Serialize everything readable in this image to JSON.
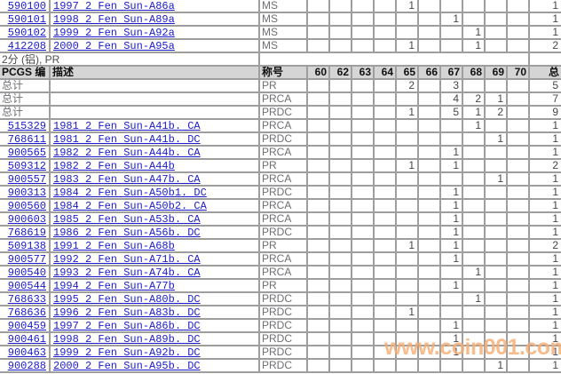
{
  "colors": {
    "link_blue": "#1a1acd",
    "header_bg": "#d5d5d5",
    "grid_line": "#9e9e9e",
    "count_text": "#45454d",
    "muted_text": "#6e6e74",
    "watermark_orange": "#f6ad74"
  },
  "watermark": {
    "text": "www.coin001.com"
  },
  "section": {
    "label": "2分 (铝), PR"
  },
  "table": {
    "header": {
      "pcgs": "PCGS 编",
      "description": "描述",
      "designation": "称号",
      "total": "总"
    },
    "grade_columns": [
      "60",
      "62",
      "63",
      "64",
      "65",
      "66",
      "67",
      "68",
      "69",
      "70"
    ],
    "totals_label": "总计",
    "ms_rows": [
      {
        "pcgs": "590100",
        "description": "1997 2 Fen Sun-A86a",
        "designation": "MS",
        "grades": {
          "65": 1
        },
        "total": 1
      },
      {
        "pcgs": "590101",
        "description": "1998 2 Fen Sun-A89a",
        "designation": "MS",
        "grades": {
          "67": 1
        },
        "total": 1
      },
      {
        "pcgs": "590102",
        "description": "1999 2 Fen Sun-A92a",
        "designation": "MS",
        "grades": {
          "68": 1
        },
        "total": 1
      },
      {
        "pcgs": "412208",
        "description": "2000 2 Fen Sun-A95a",
        "designation": "MS",
        "grades": {
          "65": 1,
          "68": 1
        },
        "total": 2
      }
    ],
    "pr_rows": [
      {
        "is_total": true,
        "designation": "PR",
        "grades": {
          "65": 2,
          "67": 3
        },
        "total": 5
      },
      {
        "is_total": true,
        "designation": "PRCA",
        "grades": {
          "67": 4,
          "68": 2,
          "69": 1
        },
        "total": 7
      },
      {
        "is_total": true,
        "designation": "PRDC",
        "grades": {
          "65": 1,
          "67": 5,
          "68": 1,
          "69": 2
        },
        "total": 9
      },
      {
        "pcgs": "515329",
        "description": "1981 2 Fen Sun-A41b. CA",
        "designation": "PRCA",
        "grades": {
          "68": 1
        },
        "total": 1
      },
      {
        "pcgs": "768611",
        "description": "1981 2 Fen Sun-A41b. DC",
        "designation": "PRDC",
        "grades": {
          "69": 1
        },
        "total": 1
      },
      {
        "pcgs": "900565",
        "description": "1982 2 Fen Sun-A44b. CA",
        "designation": "PRCA",
        "grades": {
          "67": 1
        },
        "total": 1
      },
      {
        "pcgs": "509312",
        "description": "1982 2 Fen Sun-A44b",
        "designation": "PR",
        "grades": {
          "65": 1,
          "67": 1
        },
        "total": 2
      },
      {
        "pcgs": "900557",
        "description": "1983 2 Fen Sun-A47b. CA",
        "designation": "PRCA",
        "grades": {
          "69": 1
        },
        "total": 1
      },
      {
        "pcgs": "900313",
        "description": "1984 2 Fen Sun-A50b1. DC",
        "designation": "PRDC",
        "grades": {
          "67": 1
        },
        "total": 1
      },
      {
        "pcgs": "900560",
        "description": "1984 2 Fen Sun-A50b2. CA",
        "designation": "PRCA",
        "grades": {
          "67": 1
        },
        "total": 1
      },
      {
        "pcgs": "900603",
        "description": "1985 2 Fen Sun-A53b. CA",
        "designation": "PRCA",
        "grades": {
          "67": 1
        },
        "total": 1
      },
      {
        "pcgs": "768619",
        "description": "1986 2 Fen Sun-A56b. DC",
        "designation": "PRDC",
        "grades": {
          "67": 1
        },
        "total": 1
      },
      {
        "pcgs": "509138",
        "description": "1991 2 Fen Sun-A68b",
        "designation": "PR",
        "grades": {
          "65": 1,
          "67": 1
        },
        "total": 2
      },
      {
        "pcgs": "900577",
        "description": "1992 2 Fen Sun-A71b. CA",
        "designation": "PRCA",
        "grades": {
          "67": 1
        },
        "total": 1
      },
      {
        "pcgs": "900540",
        "description": "1993 2 Fen Sun-A74b. CA",
        "designation": "PRCA",
        "grades": {
          "68": 1
        },
        "total": 1
      },
      {
        "pcgs": "900544",
        "description": "1994 2 Fen Sun-A77b",
        "designation": "PR",
        "grades": {
          "67": 1
        },
        "total": 1
      },
      {
        "pcgs": "768633",
        "description": "1995 2 Fen Sun-A80b. DC",
        "designation": "PRDC",
        "grades": {
          "68": 1
        },
        "total": 1
      },
      {
        "pcgs": "768636",
        "description": "1996 2 Fen Sun-A83b. DC",
        "designation": "PRDC",
        "grades": {
          "65": 1
        },
        "total": 1
      },
      {
        "pcgs": "900459",
        "description": "1997 2 Fen Sun-A86b. DC",
        "designation": "PRDC",
        "grades": {
          "67": 1
        },
        "total": 1
      },
      {
        "pcgs": "900461",
        "description": "1998 2 Fen Sun-A89b. DC",
        "designation": "PRDC",
        "grades": {
          "67": 1
        },
        "total": 1
      },
      {
        "pcgs": "900463",
        "description": "1999 2 Fen Sun-A92b. DC",
        "designation": "PRDC",
        "grades": {
          "67": 1
        },
        "total": 1
      },
      {
        "pcgs": "900288",
        "description": "2000 2 Fen Sun-A95b. DC",
        "designation": "PRDC",
        "grades": {
          "69": 1
        },
        "total": 1
      }
    ]
  }
}
